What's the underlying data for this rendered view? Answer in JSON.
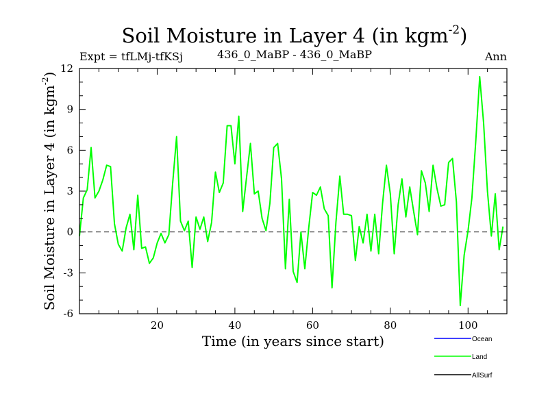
{
  "chart_data": {
    "type": "line",
    "title": "Soil Moisture in Layer 4 (in kgm",
    "title_superscript": "-2",
    "title_suffix": ")",
    "subtitle_left": "Expt = tfLMj-tfKSj",
    "subtitle_center": "436_0_MaBP - 436_0_MaBP",
    "subtitle_right": "Ann",
    "xlabel": "Time (in years since start)",
    "ylabel": "Soil Moisture in Layer 4 (in kgm",
    "ylabel_superscript": "-2",
    "ylabel_suffix": ")",
    "xlim": [
      0,
      110
    ],
    "ylim": [
      -6,
      12
    ],
    "x_ticks": [
      20,
      40,
      60,
      80,
      100
    ],
    "y_ticks": [
      -6,
      -3,
      0,
      3,
      6,
      9,
      12
    ],
    "zero_line": true,
    "legend": [
      {
        "name": "Ocean",
        "color": "#0000ff"
      },
      {
        "name": "Land",
        "color": "#00ff00"
      },
      {
        "name": "AllSurf",
        "color": "#000000"
      }
    ],
    "series": [
      {
        "name": "Land",
        "color": "#00ff00",
        "x_start": 0,
        "x_step": 1,
        "values": [
          -0.3,
          2.5,
          3.1,
          6.2,
          2.5,
          3.0,
          3.8,
          4.9,
          4.8,
          0.6,
          -0.9,
          -1.4,
          0.3,
          1.3,
          -1.3,
          2.7,
          -1.2,
          -1.1,
          -2.3,
          -1.9,
          -0.8,
          -0.1,
          -0.8,
          -0.2,
          3.6,
          7.0,
          0.8,
          0.1,
          0.8,
          -2.6,
          1.1,
          0.2,
          1.1,
          -0.7,
          0.7,
          4.4,
          2.9,
          3.6,
          7.8,
          7.8,
          5.0,
          8.5,
          1.5,
          4.0,
          6.5,
          2.8,
          3.0,
          1.0,
          0.1,
          2.1,
          6.2,
          6.5,
          3.9,
          -2.7,
          2.4,
          -2.9,
          -3.7,
          0.0,
          -2.7,
          0.3,
          2.9,
          2.7,
          3.3,
          1.7,
          1.2,
          -4.1,
          0.7,
          4.1,
          1.3,
          1.3,
          1.2,
          -2.1,
          0.4,
          -0.8,
          1.3,
          -1.4,
          1.3,
          -1.6,
          2.1,
          4.9,
          2.8,
          -1.6,
          2.0,
          3.9,
          1.1,
          3.3,
          1.5,
          -0.2,
          4.5,
          3.6,
          1.5,
          4.9,
          3.2,
          1.9,
          2.0,
          5.1,
          5.4,
          2.2,
          -5.4,
          -1.7,
          0.1,
          2.5,
          6.7,
          11.4,
          8.0,
          3.0,
          -0.3,
          2.8,
          -1.3,
          0.4
        ]
      }
    ]
  }
}
